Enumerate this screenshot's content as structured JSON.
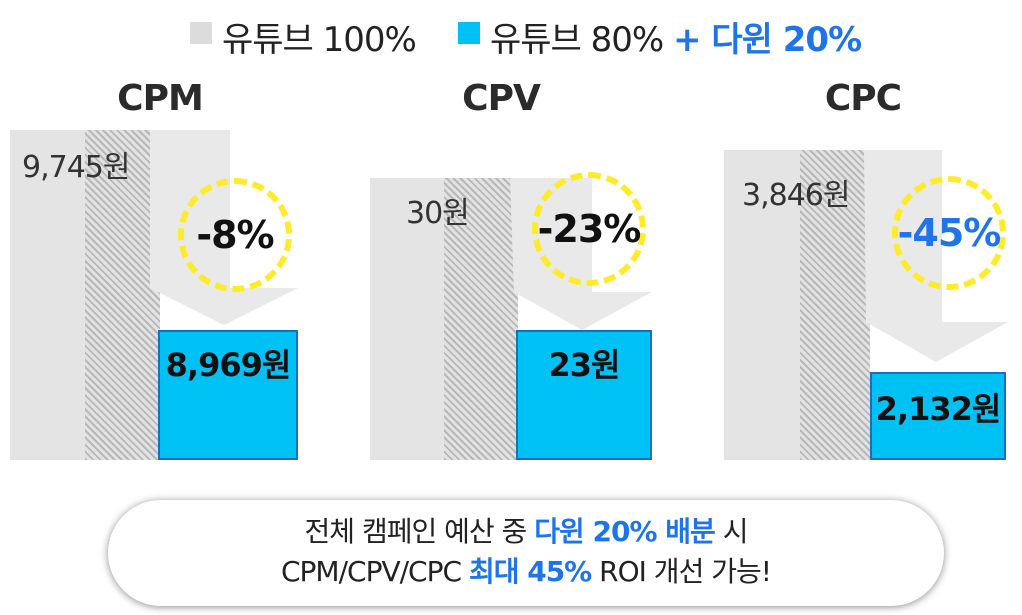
{
  "legend": {
    "series1": "유튜브 100%",
    "series2_prefix": "유튜브 80%",
    "series2_suffix": "+ 다윈 20%"
  },
  "colors": {
    "youtube_only": "#e4e4e4",
    "mixed": "#00c1f3",
    "accent": "#1f74ea",
    "circle": "#ffeb2e"
  },
  "chart_data": [
    {
      "type": "bar",
      "title": "CPM",
      "series": [
        {
          "name": "유튜브 100%",
          "value": 9745,
          "label": "9,745원"
        },
        {
          "name": "유튜브 80% + 다윈 20%",
          "value": 8969,
          "label": "8,969원"
        }
      ],
      "change": "-8%"
    },
    {
      "type": "bar",
      "title": "CPV",
      "series": [
        {
          "name": "유튜브 100%",
          "value": 30,
          "label": "30원"
        },
        {
          "name": "유튜브 80% + 다윈 20%",
          "value": 23,
          "label": "23원"
        }
      ],
      "change": "-23%"
    },
    {
      "type": "bar",
      "title": "CPC",
      "series": [
        {
          "name": "유튜브 100%",
          "value": 3846,
          "label": "3,846원"
        },
        {
          "name": "유튜브 80% + 다윈 20%",
          "value": 2132,
          "label": "2,132원"
        }
      ],
      "change": "-45%"
    }
  ],
  "note": {
    "line1_prefix": "전체 캠페인 예산 중",
    "line1_highlight": "다윈 20% 배분",
    "line1_suffix": "시",
    "line2_prefix": "CPM/CPV/CPC",
    "line2_highlight": "최대 45%",
    "line2_suffix": "ROI 개선 가능!"
  }
}
